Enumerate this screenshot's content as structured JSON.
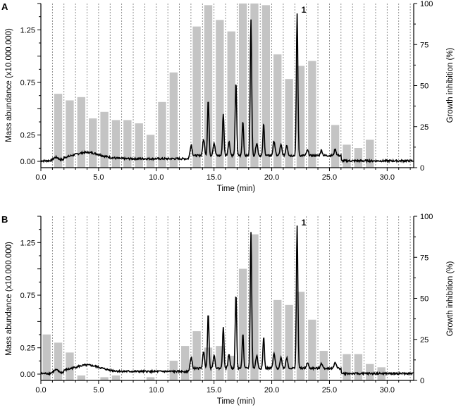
{
  "panels": [
    {
      "letter": "A",
      "peak_label": "1"
    },
    {
      "letter": "B",
      "peak_label": "1"
    }
  ],
  "chart_data": [
    {
      "type": "bar+line",
      "panel": "A",
      "xlabel": "Time (min)",
      "ylabel_left": "Mass abundance  (x10.000.000)",
      "ylabel_right": "Growth inhibition (%)",
      "xlim": [
        0,
        32.3
      ],
      "ylim_left": [
        -0.06,
        1.5
      ],
      "ylim_right": [
        0,
        100
      ],
      "x_ticks": [
        "0.0",
        "5.0",
        "10.0",
        "15.0",
        "20.0",
        "25.0",
        "30.0"
      ],
      "y_ticks_left": [
        "0.00",
        "0.25",
        "0.75",
        "1.25"
      ],
      "y_ticks_right": [
        "0",
        "25",
        "50",
        "75",
        "100"
      ],
      "grid": "vertical dashed lines between fractions",
      "bars": {
        "fraction_width_min": 1.0,
        "x": [
          0.5,
          1.5,
          2.5,
          3.5,
          4.5,
          5.5,
          6.5,
          7.5,
          8.5,
          9.5,
          10.5,
          11.5,
          12.5,
          13.5,
          14.5,
          15.5,
          16.5,
          17.5,
          18.5,
          19.5,
          20.5,
          21.5,
          22.5,
          23.5,
          24.5,
          25.5,
          26.5,
          27.5,
          28.5,
          29.5,
          30.5,
          31.5
        ],
        "growth_inhibition_pct": [
          0,
          45,
          41,
          43,
          30,
          34,
          29,
          29,
          27,
          20,
          40,
          58,
          0,
          86,
          99,
          90,
          83,
          100,
          100,
          99,
          69,
          54,
          62,
          65,
          0,
          26,
          14,
          12,
          17,
          0,
          0,
          0
        ]
      },
      "line": {
        "peaks": [
          {
            "time": 14.5,
            "abundance": 0.58
          },
          {
            "time": 15.8,
            "abundance": 0.45
          },
          {
            "time": 16.9,
            "abundance": 0.75
          },
          {
            "time": 17.5,
            "abundance": 0.38
          },
          {
            "time": 18.2,
            "abundance": 1.35
          },
          {
            "time": 19.3,
            "abundance": 0.35
          },
          {
            "time": 22.2,
            "abundance": 1.4,
            "label": "1"
          }
        ]
      }
    },
    {
      "type": "bar+line",
      "panel": "B",
      "xlabel": "Time (min)",
      "ylabel_left": "Mass abundance  (x10.000.000)",
      "ylabel_right": "Growth inhibition (%)",
      "xlim": [
        0,
        32.3
      ],
      "ylim_left": [
        -0.06,
        1.5
      ],
      "ylim_right": [
        0,
        100
      ],
      "x_ticks": [
        "0.0",
        "5.0",
        "10.0",
        "15.0",
        "20.0",
        "25.0",
        "30.0"
      ],
      "y_ticks_left": [
        "0.00",
        "0.25",
        "0.75",
        "1.25"
      ],
      "y_ticks_right": [
        "0",
        "25",
        "50",
        "75",
        "100"
      ],
      "grid": "vertical dashed lines between fractions",
      "bars": {
        "fraction_width_min": 1.0,
        "x": [
          0.5,
          1.5,
          2.5,
          3.5,
          4.5,
          5.5,
          6.5,
          7.5,
          8.5,
          9.5,
          10.5,
          11.5,
          12.5,
          13.5,
          14.5,
          15.5,
          16.5,
          17.5,
          18.5,
          19.5,
          20.5,
          21.5,
          22.5,
          23.5,
          24.5,
          25.5,
          26.5,
          27.5,
          28.5,
          29.5,
          30.5,
          31.5
        ],
        "growth_inhibition_pct": [
          28,
          23,
          17,
          3,
          0,
          2,
          3,
          0,
          0,
          2,
          0,
          12,
          21,
          30,
          20,
          21,
          15,
          68,
          89,
          0,
          49,
          46,
          54,
          37,
          18,
          0,
          16,
          16,
          10,
          8,
          0,
          0
        ]
      },
      "line": {
        "peaks": [
          {
            "time": 14.5,
            "abundance": 0.58
          },
          {
            "time": 15.8,
            "abundance": 0.45
          },
          {
            "time": 16.9,
            "abundance": 0.75
          },
          {
            "time": 17.5,
            "abundance": 0.38
          },
          {
            "time": 18.2,
            "abundance": 1.35
          },
          {
            "time": 19.3,
            "abundance": 0.35
          },
          {
            "time": 22.2,
            "abundance": 1.4,
            "label": "1"
          }
        ]
      }
    }
  ]
}
